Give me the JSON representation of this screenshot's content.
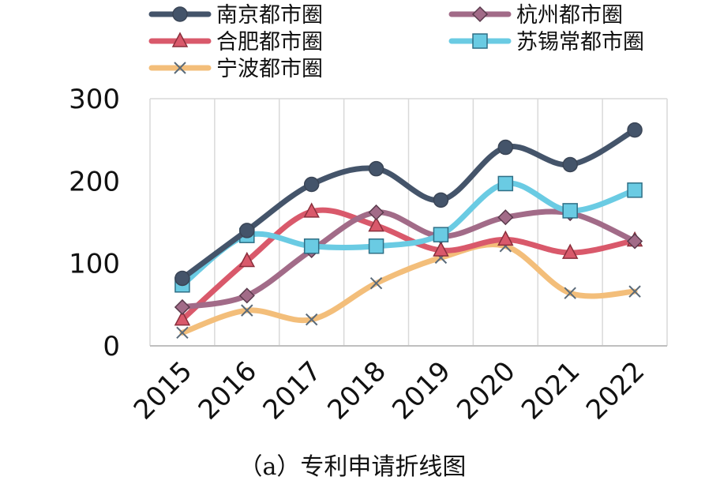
{
  "chart_data": {
    "type": "line",
    "x": [
      "2015",
      "2016",
      "2017",
      "2018",
      "2019",
      "2020",
      "2021",
      "2022"
    ],
    "ylim": [
      0,
      300
    ],
    "yticks": [
      0,
      100,
      200,
      300
    ],
    "grid": "vertical",
    "legend_position": "top",
    "series": [
      {
        "name": "南京都市圈",
        "color": "#44546A",
        "marker": "circle",
        "values": [
          82,
          140,
          196,
          215,
          177,
          241,
          220,
          262
        ]
      },
      {
        "name": "杭州都市圈",
        "color": "#A26B88",
        "marker": "diamond",
        "values": [
          47,
          61,
          116,
          162,
          133,
          156,
          161,
          127
        ]
      },
      {
        "name": "合肥都市圈",
        "color": "#D9596B",
        "marker": "triangle",
        "values": [
          32,
          103,
          163,
          146,
          116,
          129,
          113,
          128
        ]
      },
      {
        "name": "苏锡常都市圈",
        "color": "#6ACBE3",
        "marker": "square",
        "values": [
          74,
          134,
          121,
          121,
          135,
          197,
          164,
          189
        ]
      },
      {
        "name": "宁波都市圈",
        "color": "#F3BE7A",
        "marker": "x",
        "values": [
          16,
          43,
          32,
          76,
          107,
          121,
          64,
          66
        ]
      }
    ]
  },
  "caption": "（a）专利申请折线图"
}
